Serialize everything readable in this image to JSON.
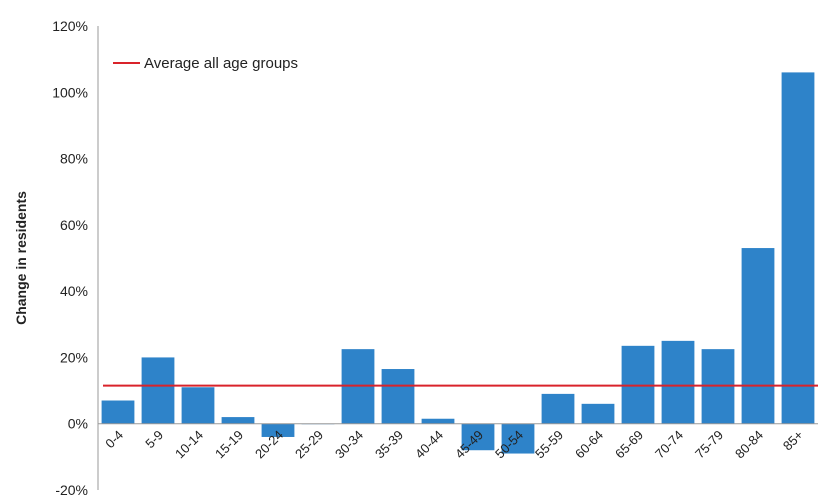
{
  "chart_data": {
    "type": "bar",
    "ylabel": "Change in residents",
    "xlabel": "",
    "title": "",
    "categories": [
      "0-4",
      "5-9",
      "10-14",
      "15-19",
      "20-24",
      "25-29",
      "30-34",
      "35-39",
      "40-44",
      "45-49",
      "50-54",
      "55-59",
      "60-64",
      "65-69",
      "70-74",
      "75-79",
      "80-84",
      "85+"
    ],
    "series": [
      {
        "values": [
          7,
          20,
          11,
          2,
          -4,
          0,
          22.5,
          16.5,
          1.5,
          -8,
          -9,
          9,
          6,
          23.5,
          25,
          22.5,
          53,
          106
        ]
      }
    ],
    "reference_line": {
      "name": "Average all age groups",
      "value": 11.5
    },
    "ylim": [
      -20,
      120
    ],
    "yticks": [
      -20,
      0,
      20,
      40,
      60,
      80,
      100,
      120
    ],
    "ytick_labels": [
      "-20%",
      "0%",
      "20%",
      "40%",
      "60%",
      "80%",
      "100%",
      "120%"
    ],
    "grid": false,
    "legend_position": "top-left",
    "colors": {
      "bar": "#2E83C9",
      "reference_line": "#D9232A",
      "axis": "#9a9a9a",
      "text": "#222222"
    }
  }
}
